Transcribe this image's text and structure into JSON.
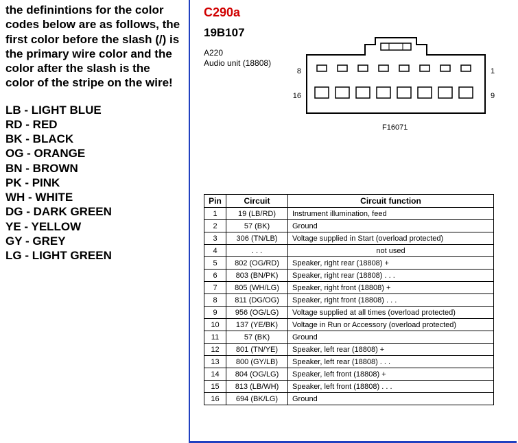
{
  "left": {
    "intro": "the definintions for the color codes below are as follows,  the first color before the slash (/) is the primary wire color and the color after the slash is the color of the stripe on the wire!",
    "codes": [
      "LB - LIGHT BLUE",
      "RD - RED",
      "BK - BLACK",
      "OG - ORANGE",
      "BN - BROWN",
      "PK - PINK",
      "WH - WHITE",
      "DG - DARK GREEN",
      "YE - YELLOW",
      "GY - GREY",
      "LG - LIGHT GREEN"
    ]
  },
  "connector": {
    "id": "C290a",
    "sub": "19B107",
    "a_label": "A220",
    "audio_label": "Audio unit (18808)",
    "bottom_label": "F16071",
    "pin_left_top": "8",
    "pin_right_top": "1",
    "pin_left_bottom": "16",
    "pin_right_bottom": "9"
  },
  "table": {
    "headers": {
      "pin": "Pin",
      "circuit": "Circuit",
      "func": "Circuit function"
    },
    "rows": [
      {
        "pin": "1",
        "circuit": "19 (LB/RD)",
        "func": "Instrument illumination, feed"
      },
      {
        "pin": "2",
        "circuit": "57 (BK)",
        "func": "Ground"
      },
      {
        "pin": "3",
        "circuit": "306 (TN/LB)",
        "func": "Voltage supplied in Start (overload protected)"
      },
      {
        "pin": "4",
        "circuit": ".  .  .",
        "func": "not used"
      },
      {
        "pin": "5",
        "circuit": "802 (OG/RD)",
        "func": "Speaker, right rear (18808) +"
      },
      {
        "pin": "6",
        "circuit": "803 (BN/PK)",
        "func": "Speaker, right rear (18808) .  .  ."
      },
      {
        "pin": "7",
        "circuit": "805 (WH/LG)",
        "func": "Speaker, right front (18808) +"
      },
      {
        "pin": "8",
        "circuit": "811 (DG/OG)",
        "func": "Speaker, right front (18808) .  .  ."
      },
      {
        "pin": "9",
        "circuit": "956 (OG/LG)",
        "func": "Voltage supplied at all times (overload protected)"
      },
      {
        "pin": "10",
        "circuit": "137 (YE/BK)",
        "func": "Voltage in Run or Accessory (overload protected)"
      },
      {
        "pin": "11",
        "circuit": "57 (BK)",
        "func": "Ground"
      },
      {
        "pin": "12",
        "circuit": "801 (TN/YE)",
        "func": "Speaker, left rear (18808) +"
      },
      {
        "pin": "13",
        "circuit": "800 (GY/LB)",
        "func": "Speaker, left rear (18808) .  .  ."
      },
      {
        "pin": "14",
        "circuit": "804 (OG/LG)",
        "func": "Speaker, left front (18808) +"
      },
      {
        "pin": "15",
        "circuit": "813 (LB/WH)",
        "func": "Speaker, left front (18808) .  .  ."
      },
      {
        "pin": "16",
        "circuit": "694 (BK/LG)",
        "func": "Ground"
      }
    ]
  },
  "colors": {
    "accent_red": "#d00000",
    "border_blue": "#2040c0",
    "text": "#000000",
    "background": "#ffffff"
  }
}
